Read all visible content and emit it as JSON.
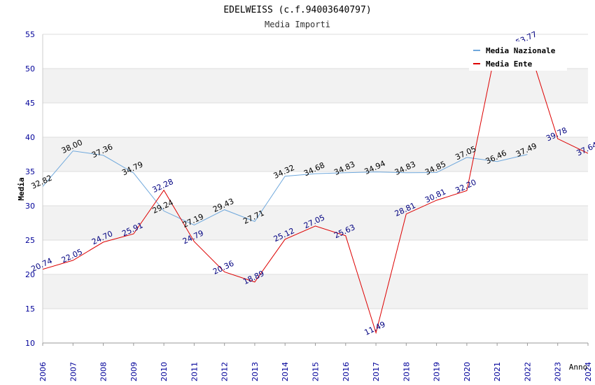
{
  "chart_data": {
    "type": "line",
    "title": "EDELWEISS (c.f.94003640797)",
    "subtitle": "Media Importi",
    "xlabel": "Anno",
    "ylabel": "Media",
    "ylim": [
      10,
      55
    ],
    "yticks": [
      "10",
      "15",
      "20",
      "25",
      "30",
      "35",
      "40",
      "45",
      "50",
      "55"
    ],
    "categories": [
      "2006",
      "2007",
      "2008",
      "2009",
      "2010",
      "2011",
      "2012",
      "2013",
      "2014",
      "2015",
      "2016",
      "2017",
      "2018",
      "2019",
      "2020",
      "2021",
      "2022",
      "2023",
      "2024"
    ],
    "grid": true,
    "legend_position": "top-right",
    "series": [
      {
        "name": "Media Nazionale",
        "color": "#6fa8dc",
        "label_color": "#000000",
        "values": [
          32.82,
          38.0,
          37.36,
          34.79,
          29.24,
          27.19,
          29.43,
          27.71,
          34.32,
          34.68,
          34.83,
          34.94,
          34.83,
          34.85,
          37.05,
          36.46,
          37.49,
          null,
          null
        ],
        "labels": [
          "32.82",
          "38.00",
          "37.36",
          "34.79",
          "29.24",
          "27.19",
          "29.43",
          "27.71",
          "34.32",
          "34.68",
          "34.83",
          "34.94",
          "34.83",
          "34.85",
          "37.05",
          "36.46",
          "37.49",
          null,
          null
        ]
      },
      {
        "name": "Media Ente",
        "color": "#dd0000",
        "label_color": "#000080",
        "values": [
          20.74,
          22.05,
          24.7,
          25.91,
          32.28,
          24.79,
          20.36,
          18.89,
          25.12,
          27.05,
          25.63,
          11.49,
          28.81,
          30.81,
          32.2,
          53.77,
          53.77,
          39.78,
          37.64
        ],
        "labels": [
          "20.74",
          "22.05",
          "24.70",
          "25.91",
          "32.28",
          "24.79",
          "20.36",
          "18.89",
          "25.12",
          "27.05",
          "25.63",
          "11.49",
          "28.81",
          "30.81",
          "32.20",
          null,
          "53.77",
          "39.78",
          "37.64"
        ]
      }
    ]
  }
}
